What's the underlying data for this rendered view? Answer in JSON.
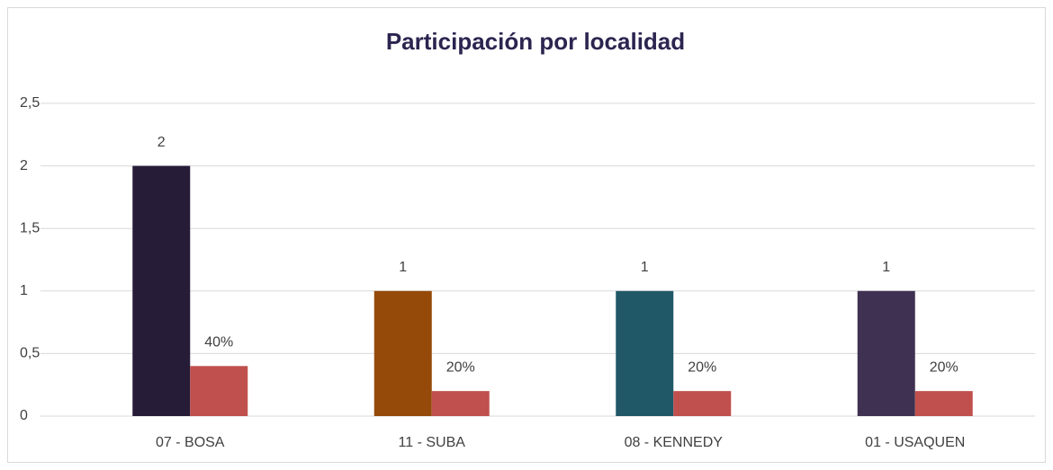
{
  "chart_data": {
    "type": "bar",
    "title": "Participación por localidad",
    "categories": [
      "07 - BOSA",
      "11 - SUBA",
      "08 - KENNEDY",
      "01 - USAQUEN"
    ],
    "series": [
      {
        "colors": [
          "#261c38",
          "#954a09",
          "#215868",
          "#3f3151"
        ],
        "values": [
          2,
          1,
          1,
          1
        ]
      },
      {
        "color": "#c0504d",
        "values": [
          0.4,
          0.2,
          0.2,
          0.2
        ],
        "value_labels": [
          "40%",
          "20%",
          "20%",
          "20%"
        ]
      }
    ],
    "ylim": [
      0,
      2.5
    ],
    "yticks": [
      0,
      {
        "value": 0.5,
        "label": "0,5"
      },
      1,
      {
        "value": 1.5,
        "label": "1,5"
      },
      2,
      {
        "value": 2.5,
        "label": "2,5"
      }
    ],
    "grid": true
  }
}
